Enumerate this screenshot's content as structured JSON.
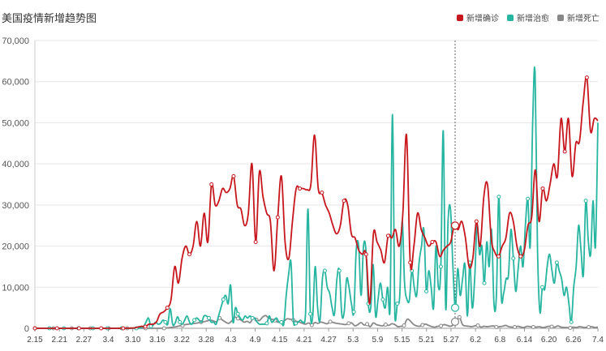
{
  "chart_data": {
    "type": "line",
    "title": "美国疫情新增趋势图",
    "xlabel": "",
    "ylabel": "",
    "ylim": [
      0,
      70000
    ],
    "yticks": [
      0,
      10000,
      20000,
      30000,
      40000,
      50000,
      60000,
      70000
    ],
    "ytick_labels": [
      "0",
      "10,000",
      "20,000",
      "30,000",
      "40,000",
      "50,000",
      "60,000",
      "70,000"
    ],
    "x_tick_labels": [
      "2.15",
      "2.21",
      "2.27",
      "3.4",
      "3.10",
      "3.16",
      "3.22",
      "3.28",
      "4.3",
      "4.9",
      "4.15",
      "4.21",
      "4.27",
      "5.3",
      "5.9",
      "5.15",
      "5.21",
      "5.27",
      "6.2",
      "6.8",
      "6.14",
      "6.20",
      "6.26",
      "7.4"
    ],
    "x_start": "2.15",
    "grid": true,
    "legend_position": "top-right",
    "highlighted_date": "5.28",
    "series": [
      {
        "name": "新增确诊",
        "color": "#c8161d",
        "values": [
          0,
          0,
          0,
          0,
          0,
          0,
          0,
          0,
          0,
          0,
          0,
          0,
          0,
          0,
          0,
          0,
          0,
          0,
          0,
          0,
          0,
          0,
          0,
          0,
          10,
          20,
          50,
          100,
          300,
          500,
          400,
          1000,
          1000,
          1500,
          3500,
          4000,
          5000,
          7000,
          15000,
          11000,
          17000,
          20000,
          18000,
          20000,
          26000,
          20000,
          28000,
          21000,
          35000,
          30000,
          31000,
          34000,
          33000,
          34000,
          37000,
          30000,
          29000,
          25000,
          28000,
          40000,
          21000,
          38000,
          32000,
          28000,
          26000,
          14000,
          27000,
          37000,
          21000,
          17000,
          26000,
          34000,
          34000,
          34000,
          33700,
          35000,
          47000,
          34000,
          33000,
          30000,
          28000,
          25000,
          23000,
          25000,
          31000,
          30000,
          23000,
          22000,
          19000,
          18000,
          18000,
          6000,
          23000,
          21000,
          19000,
          16000,
          22500,
          22000,
          24000,
          20000,
          28000,
          47000,
          16000,
          20000,
          28000,
          24000,
          22000,
          20000,
          21000,
          21000,
          17500,
          19000,
          20000,
          21000,
          25000,
          24000,
          26000,
          22000,
          15000,
          17000,
          26000,
          20000,
          32000,
          35000,
          22000,
          18500,
          17500,
          20000,
          22000,
          28000,
          26000,
          20000,
          17500,
          19000,
          25000,
          27000,
          38500,
          26000,
          34000,
          31000,
          35000,
          40000,
          37000,
          51000,
          43000,
          51000,
          37000,
          45000,
          45500,
          55000,
          61000,
          48000,
          51000,
          50500
        ]
      },
      {
        "name": "新增治愈",
        "color": "#26b5a0",
        "values": [
          0,
          0,
          0,
          0,
          0,
          0,
          0,
          0,
          0,
          0,
          0,
          0,
          0,
          0,
          0,
          0,
          0,
          0,
          0,
          0,
          0,
          0,
          0,
          0,
          0,
          0,
          0,
          0,
          0,
          0,
          0,
          0,
          0,
          0,
          0,
          0,
          0,
          0,
          0,
          0,
          0,
          0,
          0,
          100,
          200,
          500,
          1500,
          2500,
          500,
          800,
          1500,
          1000,
          1200,
          2000,
          1500,
          1000,
          4800,
          1000,
          1200,
          2800,
          1500,
          1000,
          2000,
          3000,
          1500,
          1000,
          2000,
          2500,
          2000,
          1500,
          3000,
          3000,
          2500,
          1500,
          1500,
          1000,
          3000,
          5000,
          7000,
          8000,
          6000,
          10500,
          1500,
          5000,
          3500,
          2500,
          2000,
          3000,
          2500,
          3000,
          2500,
          2500,
          1500,
          1000,
          1000,
          1000,
          1200,
          3000,
          1500,
          2000,
          2500,
          1500,
          1500,
          1000,
          8000,
          13000,
          16000,
          1500,
          1200,
          1500,
          2000,
          1500,
          3500,
          29000,
          3500,
          3000,
          15000,
          5000,
          2000,
          12000,
          14000,
          10000,
          8500,
          5000,
          3500,
          12000,
          14000,
          3500,
          4000,
          12000,
          10000,
          6000,
          4000,
          19000,
          20000,
          8000,
          20000,
          19000,
          6000,
          5000,
          15500,
          3000,
          7000,
          11000,
          7000,
          5000,
          10000,
          4500,
          52000,
          2500,
          6000,
          8000,
          26000,
          11000,
          7000,
          7000,
          14000,
          10000,
          8000,
          16000,
          20000,
          24000,
          9000,
          14000,
          10000,
          5000,
          20000,
          10000,
          15000,
          48000,
          5000,
          26000,
          29000,
          15000,
          5000,
          14500,
          8000,
          12000,
          15500,
          3000,
          16000,
          5000,
          12000,
          25000,
          18000,
          20000,
          11000,
          21000,
          15000,
          24000,
          6000,
          8000,
          32000,
          8000,
          8500,
          12000,
          13000,
          24000,
          17000,
          9000,
          14500,
          20000,
          15000,
          25000,
          31500,
          20000,
          50000,
          62000,
          20000,
          4000,
          10000,
          9500,
          15000,
          18000,
          14000,
          11000,
          16000,
          14000,
          12000,
          8000,
          10000,
          6000,
          1500,
          10000,
          15000,
          25000,
          19000,
          13000,
          31000,
          21500,
          18000,
          31000,
          20000,
          50000
        ]
      },
      {
        "name": "新增死亡",
        "color": "#888888",
        "values": [
          0,
          0,
          0,
          0,
          0,
          0,
          0,
          0,
          0,
          0,
          0,
          0,
          0,
          0,
          0,
          0,
          0,
          0,
          0,
          0,
          0,
          0,
          0,
          0,
          0,
          0,
          0,
          0,
          0,
          0,
          0,
          0,
          0,
          0,
          0,
          0,
          0,
          0,
          0,
          0,
          0,
          0,
          0,
          100,
          200,
          300,
          400,
          600,
          700,
          900,
          1000,
          1100,
          1200,
          1300,
          1500,
          1600,
          1800,
          2000,
          1800,
          1600,
          2500,
          2000,
          1500,
          1200,
          1800,
          2700,
          2400,
          2000,
          1500,
          1700,
          1400,
          2500,
          2100,
          1900,
          2700,
          3100,
          2500,
          2200,
          1900,
          1500,
          1600,
          1800,
          2300,
          2200,
          2000,
          1700,
          1500,
          1200,
          1000,
          1300,
          800,
          1400,
          1200,
          1500,
          1300,
          1100,
          1600,
          1400,
          1200,
          1100,
          1000,
          900,
          1200,
          1300,
          600,
          900,
          1400,
          800,
          1000,
          400,
          1300,
          900,
          700,
          600,
          900,
          700,
          1100,
          900,
          400,
          500,
          700,
          2200,
          1800,
          1000,
          600,
          500,
          800,
          1000,
          700,
          400,
          300,
          500,
          600,
          900,
          700,
          500,
          800,
          1600,
          2700,
          900,
          600,
          500,
          400,
          600,
          700,
          300,
          500,
          400,
          500,
          600,
          300,
          400,
          500,
          700,
          400,
          300,
          300,
          500,
          300,
          200,
          500,
          400,
          300,
          300,
          400,
          200,
          300,
          500,
          400,
          300,
          600,
          300,
          200,
          200,
          100,
          300,
          200,
          400,
          300,
          200,
          300,
          400,
          200,
          300
        ]
      }
    ]
  }
}
